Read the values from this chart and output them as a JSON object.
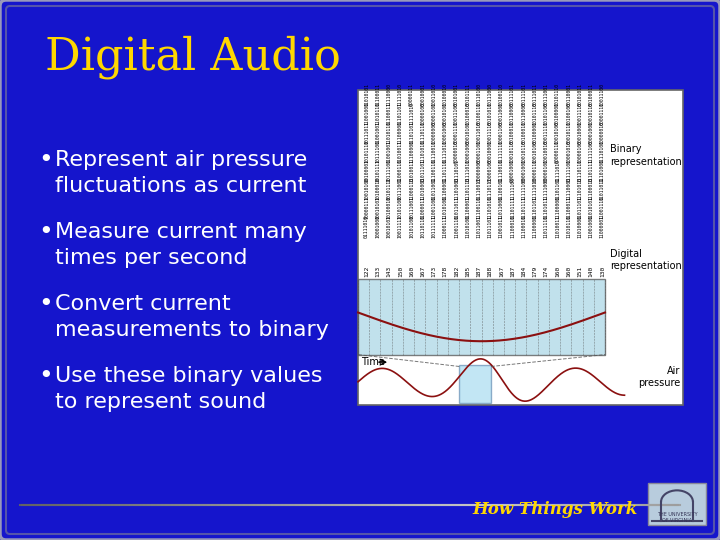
{
  "title": "Digital Audio",
  "title_color": "#FFD700",
  "title_fontsize": 32,
  "bg_color": "#1515CC",
  "bullet_items": [
    "Represent air pressure\nfluctuations as current",
    "Measure current many\ntimes per second",
    "Convert current\nmeasurements to binary",
    "Use these binary values\nto represent sound"
  ],
  "bullet_color": "#FFFFFF",
  "bullet_fontsize": 16,
  "footer_text": "How Things Work",
  "footer_color": "#FFD700",
  "image_bg": "#FFFFFF",
  "digital_numbers": [
    "122",
    "133",
    "143",
    "150",
    "160",
    "167",
    "173",
    "178",
    "182",
    "185",
    "187",
    "188",
    "167",
    "187",
    "184",
    "179",
    "174",
    "160",
    "160",
    "151",
    "140",
    "130"
  ],
  "panel_color": "#ADD8E6",
  "wave_color": "#8B1010",
  "zoom_box_color": "#87CEEB"
}
